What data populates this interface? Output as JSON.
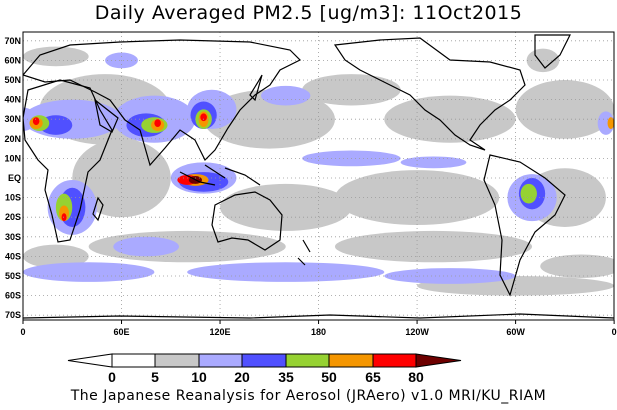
{
  "title": "Daily Averaged PM2.5 [ug/m3]: 11Oct2015",
  "footer": "The Japanese Reanalysis for Aerosol (JRAero) v1.0 MRI/KU_RIAM",
  "map": {
    "lat_labels": [
      "70N",
      "60N",
      "50N",
      "40N",
      "30N",
      "20N",
      "10N",
      "EQ",
      "10S",
      "20S",
      "30S",
      "40S",
      "50S",
      "60S",
      "70S"
    ],
    "lat_values": [
      70,
      60,
      50,
      40,
      30,
      20,
      10,
      0,
      -10,
      -20,
      -30,
      -40,
      -50,
      -60,
      -70
    ],
    "lon_labels": [
      "0",
      "60E",
      "120E",
      "180",
      "120W",
      "60W",
      "0"
    ],
    "lon_values": [
      0,
      60,
      120,
      180,
      240,
      300,
      360
    ],
    "variable": "PM2.5",
    "units": "ug/m3",
    "date": "11Oct2015"
  },
  "colorbar": {
    "levels": [
      "0",
      "5",
      "10",
      "20",
      "35",
      "50",
      "65",
      "80"
    ],
    "colors": [
      "#ffffff",
      "#ffffff",
      "#c8c8c8",
      "#aaaaff",
      "#5050ff",
      "#96d232",
      "#f59600",
      "#ff0000",
      "#6e0000"
    ]
  }
}
